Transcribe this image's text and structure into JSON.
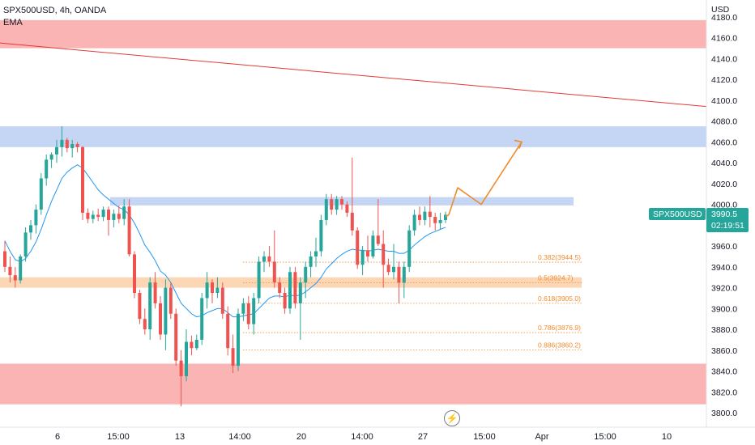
{
  "header": {
    "symbol_line": "SPX500USD, 4h, OANDA",
    "indicator": "EMA"
  },
  "currency": "USD",
  "price_axis": [
    "4180.0",
    "4160.0",
    "4140.0",
    "4120.0",
    "4100.0",
    "4080.0",
    "4060.0",
    "4040.0",
    "4020.0",
    "4000.0",
    "3980.0",
    "3960.0",
    "3940.0",
    "3920.0",
    "3900.0",
    "3880.0",
    "3860.0",
    "3840.0",
    "3820.0",
    "3800.0"
  ],
  "time_axis": [
    "6",
    "15:00",
    "13",
    "14:00",
    "20",
    "14:00",
    "27",
    "15:00",
    "Apr",
    "15:00",
    "10"
  ],
  "symbol_tag": "SPX500USD",
  "last_price": "3990.5",
  "countdown": "02:19:51",
  "fib_levels": [
    "0.382(3944.5)",
    "0.5(3924.7)",
    "0.618(3905.0)",
    "0.786(3876.9)",
    "0.886(3860.2)"
  ],
  "colors": {
    "up": "#26a69a",
    "down": "#ef5350",
    "ema": "#2196f3",
    "resistance_zone": "#fbb4b4",
    "support_zone": "#c5d6f4",
    "fib_zone": "#fcd7b6",
    "projection": "#f28b2c",
    "trendline": "#e53935"
  },
  "chart_data": {
    "type": "candlestick",
    "symbol": "SPX500USD",
    "timeframe": "4h",
    "ylim": [
      3795,
      4190
    ],
    "price_tick_labels": [
      4180,
      4160,
      4140,
      4120,
      4100,
      4080,
      4060,
      4040,
      4020,
      4000,
      3980,
      3960,
      3940,
      3920,
      3900,
      3880,
      3860,
      3840,
      3820,
      3800
    ],
    "zones": [
      {
        "name": "resistance",
        "from": 4150,
        "to": 4177
      },
      {
        "name": "supply",
        "from": 4055,
        "to": 4075
      },
      {
        "name": "level",
        "from": 3999,
        "to": 4007
      },
      {
        "name": "fib-0.5",
        "from": 3920,
        "to": 3930
      },
      {
        "name": "demand",
        "from": 3808,
        "to": 3847
      }
    ],
    "trendline": {
      "from": 4155,
      "to": 4094
    },
    "candles": [
      [
        3955,
        3965,
        3935,
        3940
      ],
      [
        3940,
        3950,
        3925,
        3932
      ],
      [
        3932,
        3940,
        3920,
        3927
      ],
      [
        3927,
        3952,
        3924,
        3950
      ],
      [
        3950,
        3978,
        3945,
        3973
      ],
      [
        3973,
        3985,
        3966,
        3980
      ],
      [
        3980,
        4000,
        3972,
        3995
      ],
      [
        3995,
        4030,
        3990,
        4025
      ],
      [
        4025,
        4048,
        4018,
        4043
      ],
      [
        4043,
        4050,
        4035,
        4048
      ],
      [
        4048,
        4062,
        4040,
        4055
      ],
      [
        4055,
        4075,
        4046,
        4062
      ],
      [
        4062,
        4064,
        4050,
        4054
      ],
      [
        4054,
        4062,
        4045,
        4058
      ],
      [
        4058,
        4060,
        4050,
        4055
      ],
      [
        4055,
        4056,
        3985,
        3992
      ],
      [
        3992,
        3996,
        3982,
        3986
      ],
      [
        3986,
        3994,
        3982,
        3990
      ],
      [
        3990,
        3996,
        3984,
        3988
      ],
      [
        3988,
        3998,
        3984,
        3995
      ],
      [
        3995,
        3998,
        3970,
        3985
      ],
      [
        3985,
        3995,
        3978,
        3991
      ],
      [
        3991,
        3999,
        3982,
        3986
      ],
      [
        3986,
        4005,
        3980,
        3998
      ],
      [
        3998,
        4005,
        3950,
        3952
      ],
      [
        3952,
        3955,
        3910,
        3915
      ],
      [
        3915,
        3918,
        3885,
        3890
      ],
      [
        3890,
        3900,
        3875,
        3880
      ],
      [
        3880,
        3930,
        3870,
        3925
      ],
      [
        3925,
        3935,
        3900,
        3905
      ],
      [
        3905,
        3912,
        3870,
        3875
      ],
      [
        3875,
        3928,
        3860,
        3920
      ],
      [
        3920,
        3925,
        3890,
        3895
      ],
      [
        3895,
        3900,
        3845,
        3850
      ],
      [
        3850,
        3860,
        3806,
        3835
      ],
      [
        3835,
        3880,
        3830,
        3868
      ],
      [
        3868,
        3874,
        3855,
        3862
      ],
      [
        3862,
        3875,
        3860,
        3870
      ],
      [
        3870,
        3915,
        3865,
        3910
      ],
      [
        3910,
        3935,
        3900,
        3925
      ],
      [
        3925,
        3928,
        3905,
        3915
      ],
      [
        3915,
        3930,
        3910,
        3920
      ],
      [
        3920,
        3925,
        3890,
        3895
      ],
      [
        3895,
        3902,
        3855,
        3862
      ],
      [
        3862,
        3875,
        3838,
        3845
      ],
      [
        3845,
        3900,
        3840,
        3895
      ],
      [
        3895,
        3910,
        3888,
        3905
      ],
      [
        3905,
        3912,
        3880,
        3885
      ],
      [
        3885,
        3915,
        3875,
        3910
      ],
      [
        3910,
        3950,
        3905,
        3945
      ],
      [
        3945,
        3955,
        3935,
        3950
      ],
      [
        3950,
        3960,
        3940,
        3945
      ],
      [
        3945,
        3975,
        3920,
        3925
      ],
      [
        3925,
        3930,
        3910,
        3915
      ],
      [
        3915,
        3920,
        3895,
        3900
      ],
      [
        3900,
        3940,
        3895,
        3935
      ],
      [
        3935,
        3940,
        3900,
        3905
      ],
      [
        3905,
        3930,
        3870,
        3925
      ],
      [
        3925,
        3945,
        3910,
        3940
      ],
      [
        3940,
        3955,
        3930,
        3950
      ],
      [
        3950,
        3968,
        3940,
        3955
      ],
      [
        3955,
        3990,
        3950,
        3985
      ],
      [
        3985,
        4010,
        3980,
        4005
      ],
      [
        4005,
        4010,
        3990,
        3995
      ],
      [
        3995,
        4008,
        3990,
        4005
      ],
      [
        4005,
        4008,
        3995,
        4000
      ],
      [
        4000,
        4003,
        3988,
        3992
      ],
      [
        3992,
        4045,
        3970,
        3975
      ],
      [
        3975,
        3978,
        3938,
        3942
      ],
      [
        3942,
        3960,
        3932,
        3956
      ],
      [
        3956,
        3970,
        3945,
        3950
      ],
      [
        3950,
        3975,
        3948,
        3970
      ],
      [
        3970,
        4005,
        3960,
        3962
      ],
      [
        3962,
        3975,
        3920,
        3942
      ],
      [
        3942,
        3948,
        3932,
        3935
      ],
      [
        3935,
        3962,
        3928,
        3940
      ],
      [
        3940,
        3945,
        3905,
        3925
      ],
      [
        3925,
        3945,
        3910,
        3940
      ],
      [
        3940,
        3980,
        3935,
        3975
      ],
      [
        3975,
        3995,
        3970,
        3990
      ],
      [
        3990,
        3998,
        3980,
        3985
      ],
      [
        3985,
        3998,
        3980,
        3993
      ],
      [
        3993,
        4008,
        3978,
        3988
      ],
      [
        3988,
        3992,
        3975,
        3982
      ],
      [
        3982,
        3992,
        3976,
        3985
      ],
      [
        3985,
        3993,
        3982,
        3990
      ]
    ],
    "ema": [
      3965,
      3955,
      3947,
      3945,
      3948,
      3955,
      3964,
      3976,
      3990,
      4003,
      4014,
      4025,
      4031,
      4035,
      4038,
      4035,
      4028,
      4021,
      4014,
      4009,
      4005,
      4001,
      3997,
      3995,
      3990,
      3982,
      3972,
      3961,
      3954,
      3946,
      3936,
      3932,
      3925,
      3915,
      3905,
      3900,
      3895,
      3892,
      3893,
      3896,
      3898,
      3900,
      3900,
      3896,
      3892,
      3892,
      3893,
      3894,
      3895,
      3900,
      3905,
      3910,
      3912,
      3912,
      3911,
      3913,
      3912,
      3913,
      3916,
      3920,
      3924,
      3930,
      3938,
      3943,
      3948,
      3952,
      3955,
      3957,
      3956,
      3956,
      3955,
      3956,
      3957,
      3956,
      3955,
      3955,
      3953,
      3953,
      3956,
      3961,
      3965,
      3969,
      3972,
      3974,
      3976,
      3978
    ],
    "projection": [
      [
        3990,
        4006
      ],
      [
        4016,
        4014
      ],
      [
        4000,
        4000
      ],
      [
        4060,
        4061
      ]
    ],
    "fib": [
      {
        "ratio": "0.382",
        "price": 3944.5
      },
      {
        "ratio": "0.5",
        "price": 3924.7
      },
      {
        "ratio": "0.618",
        "price": 3905.0
      },
      {
        "ratio": "0.786",
        "price": 3876.9
      },
      {
        "ratio": "0.886",
        "price": 3860.2
      }
    ]
  }
}
